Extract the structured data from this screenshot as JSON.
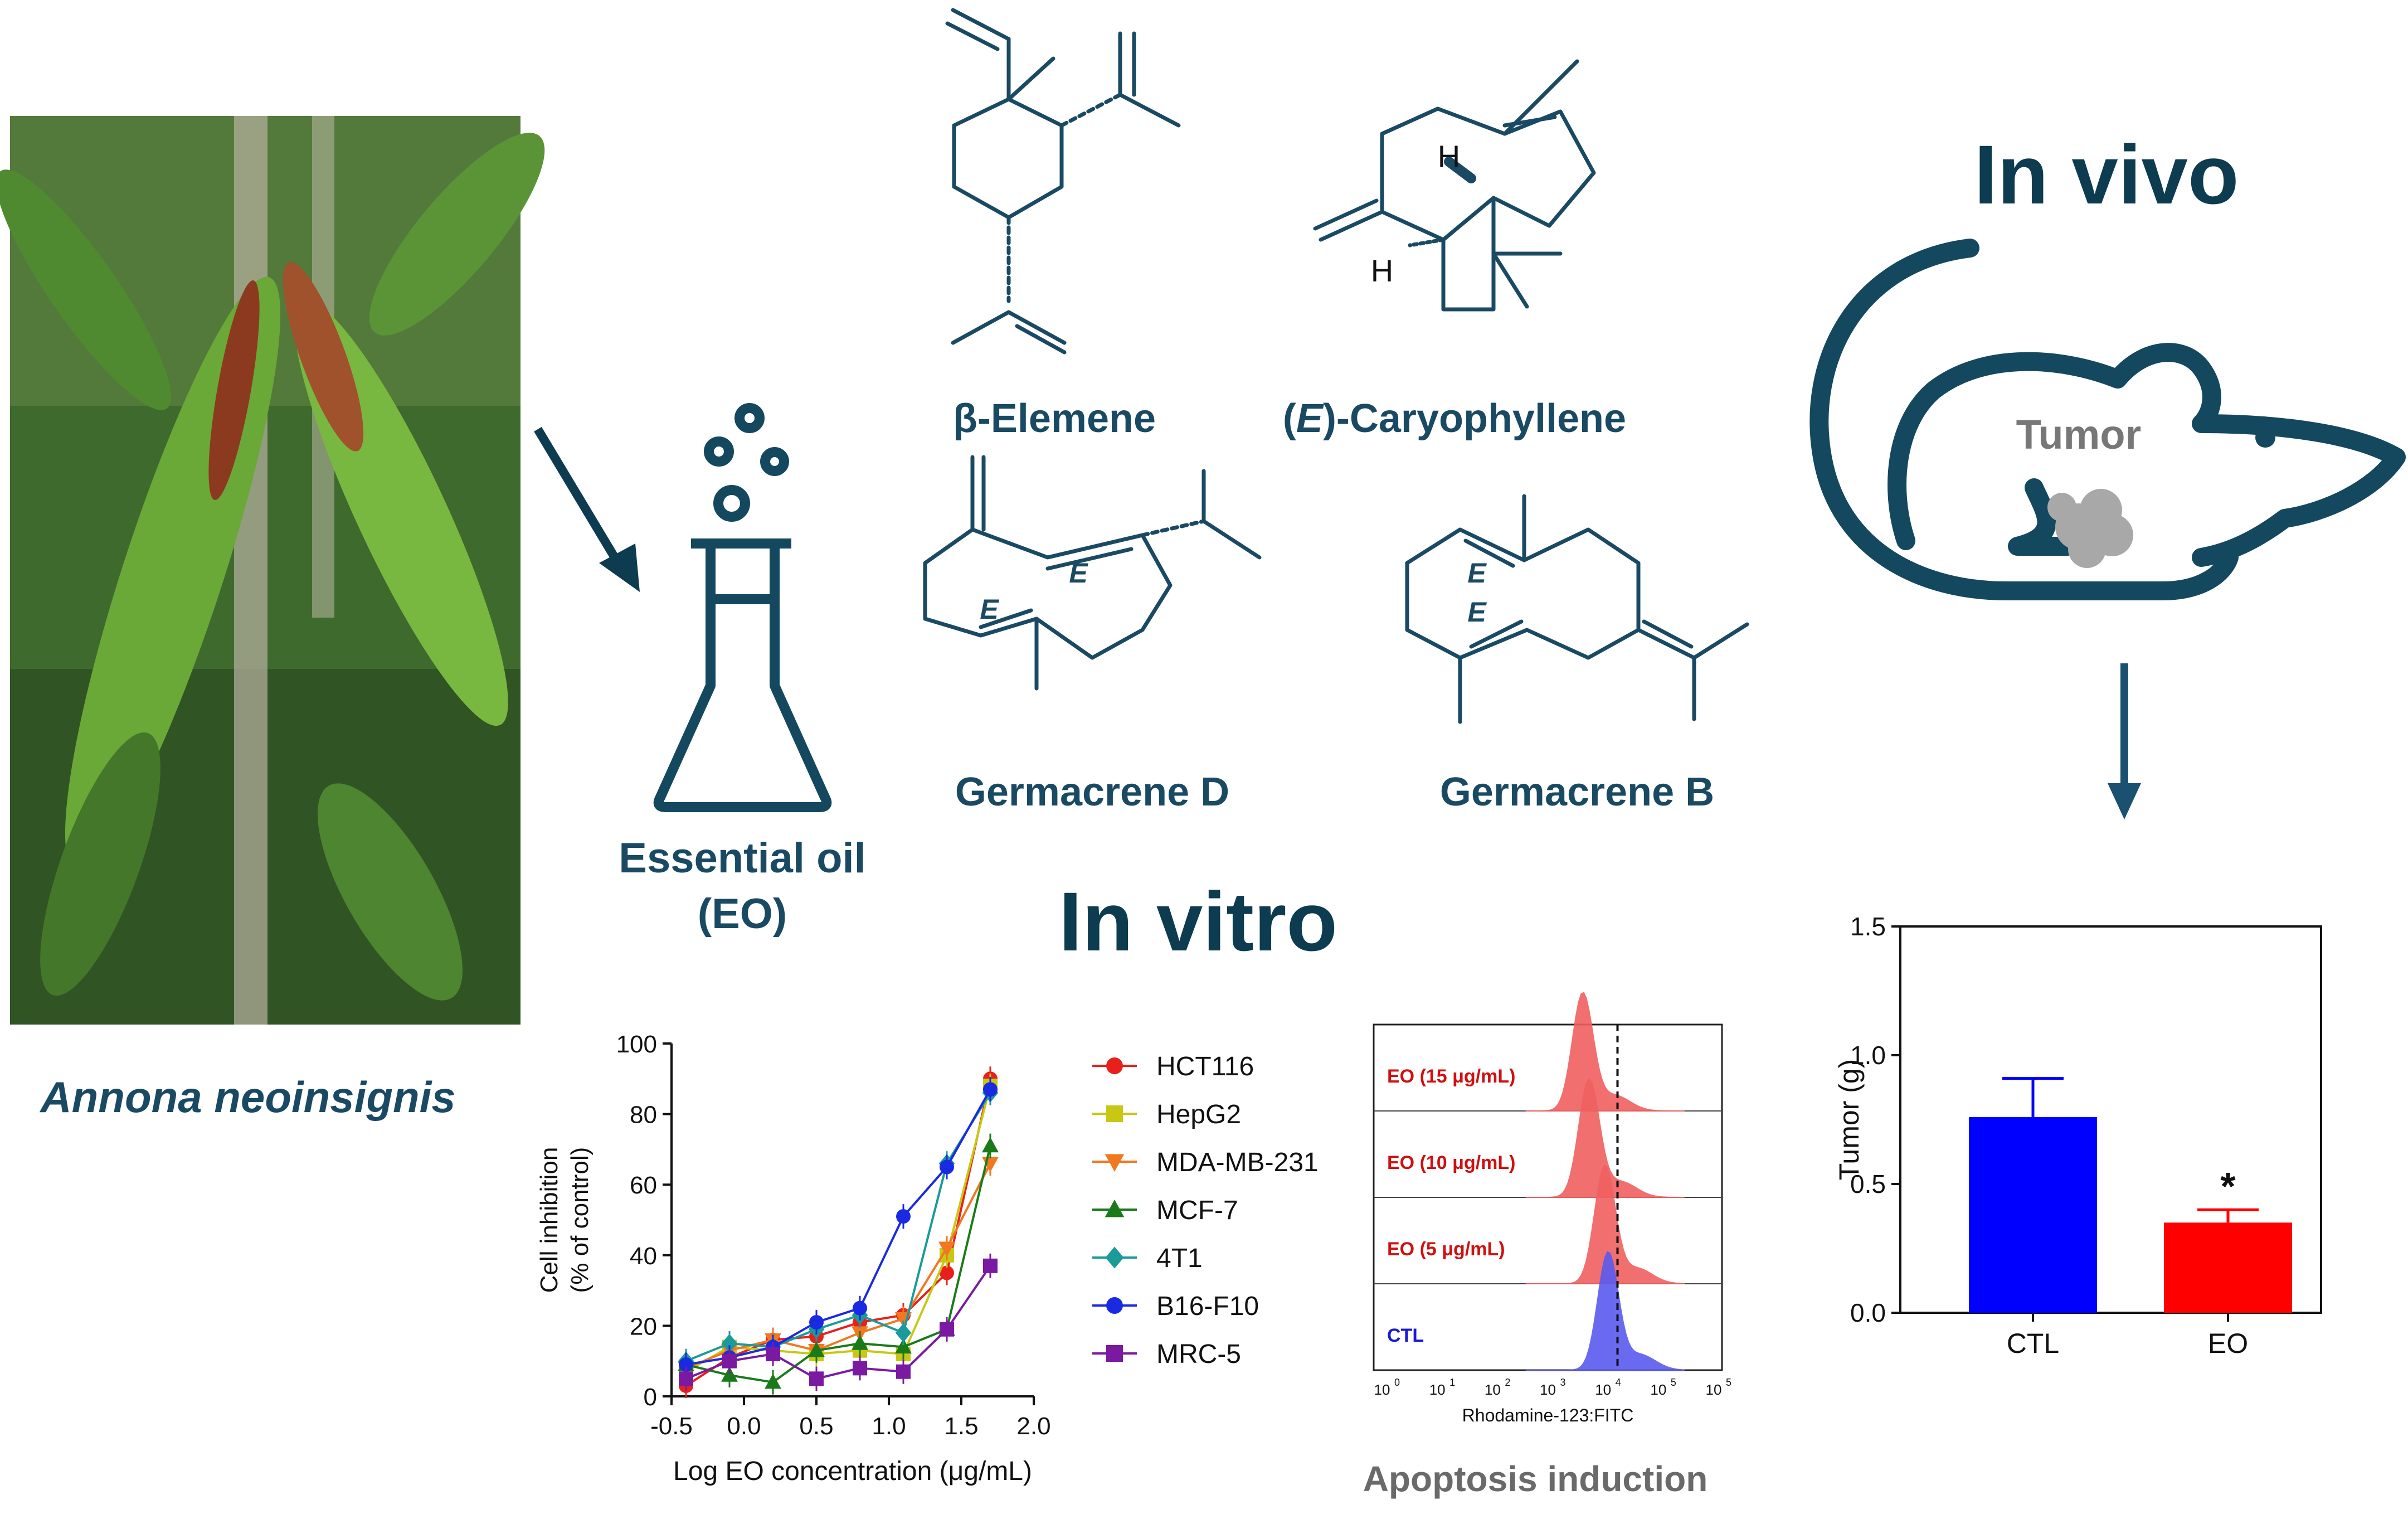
{
  "titles": {
    "in_vivo": "In vivo",
    "in_vitro": "In vitro",
    "essential_oil_line1": "Essential oil",
    "essential_oil_line2": "(EO)",
    "species": "Annona neoinsignis",
    "tumor": "Tumor",
    "apoptosis": "Apoptosis induction"
  },
  "compounds": {
    "beta_elemene": "β-Elemene",
    "caryophyllene_prefix": "(",
    "caryophyllene_e": "E",
    "caryophyllene_suffix": ")-Caryophyllene",
    "germacrene_d": "Germacrene D",
    "germacrene_b": "Germacrene B",
    "h_atom": "H",
    "e_marker": "E"
  },
  "colors": {
    "primary": "#0d3b4f",
    "ctl_bar": "#0000ff",
    "eo_bar": "#ff0000",
    "histogram_red": "#f06060",
    "histogram_blue": "#5a5af0",
    "tumor_gray": "#8a8a8a"
  },
  "chart_data": [
    {
      "type": "line",
      "xlabel": "Log EO concentration (μg/mL)",
      "ylabel_line1": "Cell inhibition",
      "ylabel_line2": "(% of control)",
      "xlim": [
        -0.5,
        2.0
      ],
      "ylim": [
        0,
        100
      ],
      "x_ticks": [
        "-0.5",
        "0.0",
        "0.5",
        "1.0",
        "1.5",
        "2.0"
      ],
      "y_ticks": [
        "0",
        "20",
        "40",
        "60",
        "80",
        "100"
      ],
      "x": [
        -0.4,
        -0.1,
        0.2,
        0.5,
        0.8,
        1.1,
        1.4,
        1.7
      ],
      "legend_position": "right",
      "series": [
        {
          "name": "HCT116",
          "color": "#e8201c",
          "marker": "circle",
          "values": [
            3,
            11,
            16,
            17,
            21,
            23,
            35,
            90
          ]
        },
        {
          "name": "HepG2",
          "color": "#c8c814",
          "marker": "square",
          "values": [
            7,
            14,
            13,
            12,
            13,
            12,
            40,
            88
          ]
        },
        {
          "name": "MDA-MB-231",
          "color": "#f07820",
          "marker": "triangle-down",
          "values": [
            8,
            13,
            16,
            13,
            18,
            22,
            42,
            66
          ]
        },
        {
          "name": "MCF-7",
          "color": "#1a7a1a",
          "marker": "triangle-up",
          "values": [
            9,
            6,
            4,
            13,
            15,
            14,
            19,
            71
          ]
        },
        {
          "name": "4T1",
          "color": "#1a9a9a",
          "marker": "diamond",
          "values": [
            10,
            15,
            14,
            19,
            23,
            18,
            66,
            86
          ]
        },
        {
          "name": "B16-F10",
          "color": "#1a2ae0",
          "marker": "circle",
          "values": [
            9,
            11,
            14,
            21,
            25,
            51,
            65,
            87
          ]
        },
        {
          "name": "MRC-5",
          "color": "#7a1aa0",
          "marker": "square",
          "values": [
            5,
            10,
            12,
            5,
            8,
            7,
            19,
            37
          ]
        }
      ]
    },
    {
      "type": "bar",
      "categories": [
        "CTL",
        "EO"
      ],
      "values": [
        0.76,
        0.35
      ],
      "errors": [
        0.15,
        0.05
      ],
      "colors": [
        "#0000ff",
        "#ff0000"
      ],
      "ylabel": "Tumor (g)",
      "ylim": [
        0,
        1.5
      ],
      "y_ticks": [
        "0.0",
        "0.5",
        "1.0",
        "1.5"
      ],
      "annotation": "*"
    },
    {
      "type": "area",
      "xlabel": "Rhodamine-123:FITC",
      "x_ticks": [
        "10",
        "10",
        "10",
        "10",
        "10",
        "10",
        "10"
      ],
      "x_tick_exps": [
        "0",
        "1",
        "2",
        "3",
        "4",
        "5",
        "5"
      ],
      "rows": [
        {
          "name": "EO (15 μg/mL)",
          "color": "#f06060",
          "peak_log": 3.3
        },
        {
          "name": "EO (10 μg/mL)",
          "color": "#f06060",
          "peak_log": 3.4
        },
        {
          "name": "EO (5 μg/mL)",
          "color": "#f06060",
          "peak_log": 3.65
        },
        {
          "name": "CTL",
          "color": "#5a5af0",
          "peak_log": 3.7
        }
      ]
    }
  ]
}
